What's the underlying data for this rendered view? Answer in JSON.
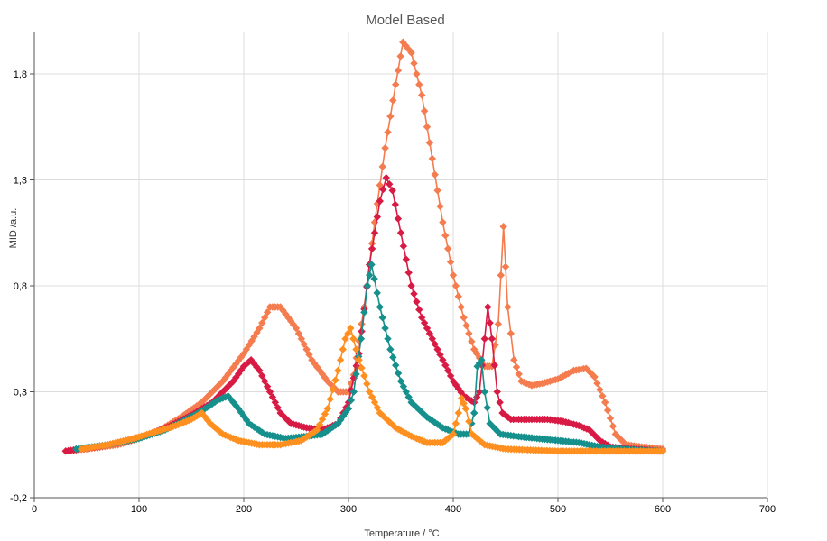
{
  "chart_data": {
    "type": "scatter",
    "title": "Model Based",
    "xlabel": "Temperature / °C",
    "ylabel": "MID /a.u.",
    "xlim": [
      0,
      700
    ],
    "ylim": [
      -0.2,
      2.0
    ],
    "x_ticks": [
      0,
      100,
      200,
      300,
      400,
      500,
      600,
      700
    ],
    "y_ticks": [
      -0.2,
      0.3,
      0.8,
      1.3,
      1.8
    ],
    "x_tick_labels": [
      "0",
      "100",
      "200",
      "300",
      "400",
      "500",
      "600",
      "700"
    ],
    "y_tick_labels": [
      "-0,2",
      "0,3",
      "0,8",
      "1,3",
      "1,8"
    ],
    "grid": true,
    "legend": "none",
    "series": [
      {
        "name": "coral",
        "color": "#F47C4F",
        "points": [
          [
            30,
            0.02
          ],
          [
            50,
            0.03
          ],
          [
            80,
            0.05
          ],
          [
            100,
            0.08
          ],
          [
            120,
            0.12
          ],
          [
            140,
            0.18
          ],
          [
            160,
            0.25
          ],
          [
            180,
            0.35
          ],
          [
            200,
            0.48
          ],
          [
            215,
            0.6
          ],
          [
            225,
            0.7
          ],
          [
            235,
            0.7
          ],
          [
            250,
            0.6
          ],
          [
            265,
            0.45
          ],
          [
            280,
            0.35
          ],
          [
            290,
            0.3
          ],
          [
            300,
            0.3
          ],
          [
            305,
            0.38
          ],
          [
            315,
            0.7
          ],
          [
            325,
            1.1
          ],
          [
            335,
            1.45
          ],
          [
            345,
            1.75
          ],
          [
            352,
            1.95
          ],
          [
            360,
            1.9
          ],
          [
            370,
            1.7
          ],
          [
            380,
            1.4
          ],
          [
            390,
            1.1
          ],
          [
            400,
            0.85
          ],
          [
            410,
            0.65
          ],
          [
            420,
            0.5
          ],
          [
            430,
            0.42
          ],
          [
            437,
            0.42
          ],
          [
            443,
            0.62
          ],
          [
            448,
            1.08
          ],
          [
            452,
            0.7
          ],
          [
            458,
            0.45
          ],
          [
            465,
            0.35
          ],
          [
            475,
            0.33
          ],
          [
            485,
            0.34
          ],
          [
            500,
            0.36
          ],
          [
            515,
            0.4
          ],
          [
            527,
            0.41
          ],
          [
            535,
            0.37
          ],
          [
            545,
            0.25
          ],
          [
            555,
            0.1
          ],
          [
            565,
            0.05
          ],
          [
            580,
            0.04
          ],
          [
            600,
            0.03
          ]
        ]
      },
      {
        "name": "crimson",
        "color": "#D81B44",
        "points": [
          [
            30,
            0.02
          ],
          [
            60,
            0.04
          ],
          [
            90,
            0.07
          ],
          [
            110,
            0.1
          ],
          [
            130,
            0.14
          ],
          [
            150,
            0.19
          ],
          [
            170,
            0.25
          ],
          [
            190,
            0.35
          ],
          [
            200,
            0.42
          ],
          [
            207,
            0.45
          ],
          [
            215,
            0.4
          ],
          [
            225,
            0.3
          ],
          [
            235,
            0.2
          ],
          [
            245,
            0.15
          ],
          [
            260,
            0.13
          ],
          [
            275,
            0.12
          ],
          [
            290,
            0.15
          ],
          [
            300,
            0.25
          ],
          [
            310,
            0.48
          ],
          [
            320,
            0.9
          ],
          [
            330,
            1.2
          ],
          [
            336,
            1.31
          ],
          [
            342,
            1.25
          ],
          [
            350,
            1.05
          ],
          [
            360,
            0.8
          ],
          [
            370,
            0.65
          ],
          [
            380,
            0.55
          ],
          [
            390,
            0.45
          ],
          [
            400,
            0.35
          ],
          [
            410,
            0.28
          ],
          [
            420,
            0.25
          ],
          [
            425,
            0.3
          ],
          [
            430,
            0.55
          ],
          [
            433,
            0.7
          ],
          [
            437,
            0.55
          ],
          [
            442,
            0.3
          ],
          [
            447,
            0.2
          ],
          [
            455,
            0.17
          ],
          [
            470,
            0.17
          ],
          [
            490,
            0.17
          ],
          [
            505,
            0.16
          ],
          [
            520,
            0.14
          ],
          [
            530,
            0.12
          ],
          [
            540,
            0.07
          ],
          [
            550,
            0.04
          ],
          [
            570,
            0.03
          ],
          [
            600,
            0.02
          ]
        ]
      },
      {
        "name": "teal",
        "color": "#16908C",
        "points": [
          [
            40,
            0.03
          ],
          [
            70,
            0.05
          ],
          [
            100,
            0.08
          ],
          [
            125,
            0.12
          ],
          [
            145,
            0.17
          ],
          [
            160,
            0.21
          ],
          [
            175,
            0.26
          ],
          [
            185,
            0.28
          ],
          [
            195,
            0.22
          ],
          [
            205,
            0.15
          ],
          [
            220,
            0.1
          ],
          [
            240,
            0.08
          ],
          [
            260,
            0.09
          ],
          [
            275,
            0.1
          ],
          [
            290,
            0.15
          ],
          [
            300,
            0.22
          ],
          [
            305,
            0.3
          ],
          [
            312,
            0.55
          ],
          [
            318,
            0.8
          ],
          [
            322,
            0.9
          ],
          [
            330,
            0.7
          ],
          [
            340,
            0.5
          ],
          [
            350,
            0.35
          ],
          [
            360,
            0.25
          ],
          [
            375,
            0.18
          ],
          [
            390,
            0.13
          ],
          [
            405,
            0.1
          ],
          [
            415,
            0.1
          ],
          [
            420,
            0.2
          ],
          [
            423,
            0.42
          ],
          [
            427,
            0.45
          ],
          [
            430,
            0.3
          ],
          [
            435,
            0.15
          ],
          [
            445,
            0.1
          ],
          [
            460,
            0.09
          ],
          [
            480,
            0.08
          ],
          [
            500,
            0.07
          ],
          [
            520,
            0.06
          ],
          [
            540,
            0.04
          ],
          [
            560,
            0.03
          ],
          [
            600,
            0.02
          ]
        ]
      },
      {
        "name": "orange",
        "color": "#FF8F1F",
        "points": [
          [
            45,
            0.03
          ],
          [
            70,
            0.05
          ],
          [
            95,
            0.08
          ],
          [
            115,
            0.11
          ],
          [
            135,
            0.14
          ],
          [
            150,
            0.17
          ],
          [
            160,
            0.2
          ],
          [
            168,
            0.15
          ],
          [
            180,
            0.1
          ],
          [
            195,
            0.07
          ],
          [
            215,
            0.05
          ],
          [
            235,
            0.05
          ],
          [
            255,
            0.07
          ],
          [
            270,
            0.12
          ],
          [
            280,
            0.22
          ],
          [
            290,
            0.4
          ],
          [
            297,
            0.55
          ],
          [
            302,
            0.6
          ],
          [
            310,
            0.45
          ],
          [
            320,
            0.3
          ],
          [
            330,
            0.2
          ],
          [
            345,
            0.13
          ],
          [
            360,
            0.09
          ],
          [
            375,
            0.06
          ],
          [
            390,
            0.06
          ],
          [
            400,
            0.1
          ],
          [
            405,
            0.2
          ],
          [
            408,
            0.27
          ],
          [
            412,
            0.22
          ],
          [
            418,
            0.1
          ],
          [
            430,
            0.05
          ],
          [
            450,
            0.03
          ],
          [
            500,
            0.02
          ],
          [
            550,
            0.02
          ],
          [
            600,
            0.02
          ]
        ]
      }
    ]
  }
}
